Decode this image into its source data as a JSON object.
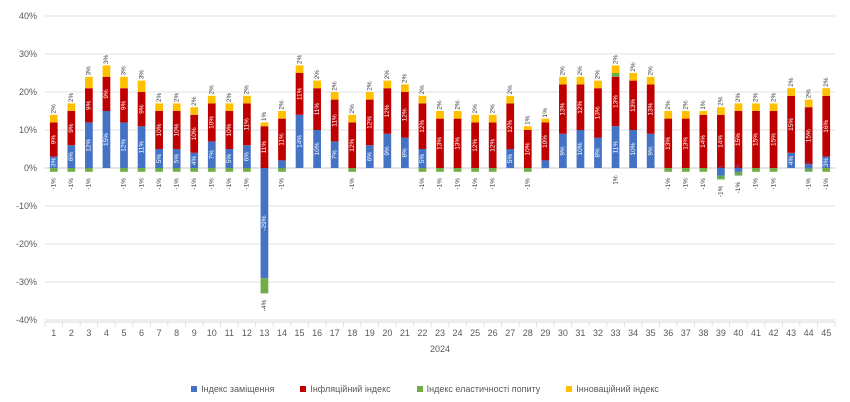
{
  "chart_data": {
    "type": "bar",
    "stacked": true,
    "categories": [
      "1",
      "2",
      "3",
      "4",
      "5",
      "6",
      "7",
      "8",
      "9",
      "10",
      "11",
      "12",
      "13",
      "14",
      "15",
      "16",
      "17",
      "18",
      "19",
      "20",
      "21",
      "22",
      "23",
      "24",
      "25",
      "26",
      "27",
      "28",
      "29",
      "30",
      "31",
      "32",
      "33",
      "34",
      "35",
      "36",
      "37",
      "38",
      "39",
      "40",
      "41",
      "42",
      "43",
      "44",
      "45"
    ],
    "group_label": "2024",
    "ylim": [
      -0.4,
      0.4
    ],
    "yticks": [
      -0.4,
      -0.3,
      -0.2,
      -0.1,
      0,
      0.1,
      0.2,
      0.3,
      0.4
    ],
    "ytick_labels": [
      "-40%",
      "-30%",
      "-20%",
      "-10%",
      "0%",
      "10%",
      "20%",
      "30%",
      "40%"
    ],
    "grid": true,
    "legend_position": "bottom",
    "series": [
      {
        "name": "Індекс заміщення",
        "color": "#4472c4",
        "values": [
          0.03,
          0.06,
          0.12,
          0.15,
          0.12,
          0.11,
          0.05,
          0.05,
          0.04,
          0.07,
          0.05,
          0.06,
          -0.29,
          0.02,
          0.14,
          0.1,
          0.07,
          0.0,
          0.06,
          0.09,
          0.08,
          0.05,
          0.0,
          0.0,
          0.0,
          0.0,
          0.05,
          0.0,
          0.02,
          0.09,
          0.1,
          0.08,
          0.11,
          0.1,
          0.09,
          0.0,
          0.0,
          0.0,
          -0.02,
          -0.01,
          0.0,
          0.0,
          0.04,
          0.01,
          0.03
        ]
      },
      {
        "name": "Інфляційний індекс",
        "color": "#c00000",
        "values": [
          0.09,
          0.09,
          0.09,
          0.09,
          0.09,
          0.09,
          0.1,
          0.1,
          0.1,
          0.1,
          0.1,
          0.11,
          0.11,
          0.11,
          0.11,
          0.11,
          0.11,
          0.12,
          0.12,
          0.12,
          0.12,
          0.12,
          0.13,
          0.13,
          0.12,
          0.12,
          0.12,
          0.1,
          0.1,
          0.13,
          0.12,
          0.13,
          0.13,
          0.13,
          0.13,
          0.13,
          0.13,
          0.14,
          0.14,
          0.15,
          0.15,
          0.15,
          0.15,
          0.15,
          0.16
        ]
      },
      {
        "name": "Індекс еластичності попиту",
        "color": "#70ad47",
        "values": [
          -0.01,
          -0.01,
          -0.01,
          0.0,
          -0.01,
          -0.01,
          -0.01,
          -0.01,
          -0.01,
          -0.01,
          -0.01,
          -0.01,
          -0.04,
          -0.01,
          0.0,
          0.0,
          0.0,
          -0.01,
          0.0,
          0.0,
          0.0,
          -0.01,
          -0.01,
          -0.01,
          -0.01,
          -0.01,
          0.0,
          -0.01,
          0.0,
          0.0,
          0.0,
          0.0,
          0.01,
          0.0,
          0.0,
          -0.01,
          -0.01,
          -0.01,
          -0.01,
          -0.01,
          -0.01,
          -0.01,
          0.0,
          -0.01,
          -0.01
        ]
      },
      {
        "name": "Інноваційний індекс",
        "color": "#ffc000",
        "values": [
          0.02,
          0.02,
          0.03,
          0.03,
          0.03,
          0.03,
          0.02,
          0.02,
          0.02,
          0.02,
          0.02,
          0.02,
          0.01,
          0.02,
          0.02,
          0.02,
          0.02,
          0.02,
          0.02,
          0.02,
          0.02,
          0.02,
          0.02,
          0.02,
          0.02,
          0.02,
          0.02,
          0.01,
          0.01,
          0.02,
          0.02,
          0.02,
          0.02,
          0.02,
          0.02,
          0.02,
          0.02,
          0.01,
          0.02,
          0.02,
          0.02,
          0.02,
          0.02,
          0.02,
          0.02
        ]
      }
    ]
  }
}
